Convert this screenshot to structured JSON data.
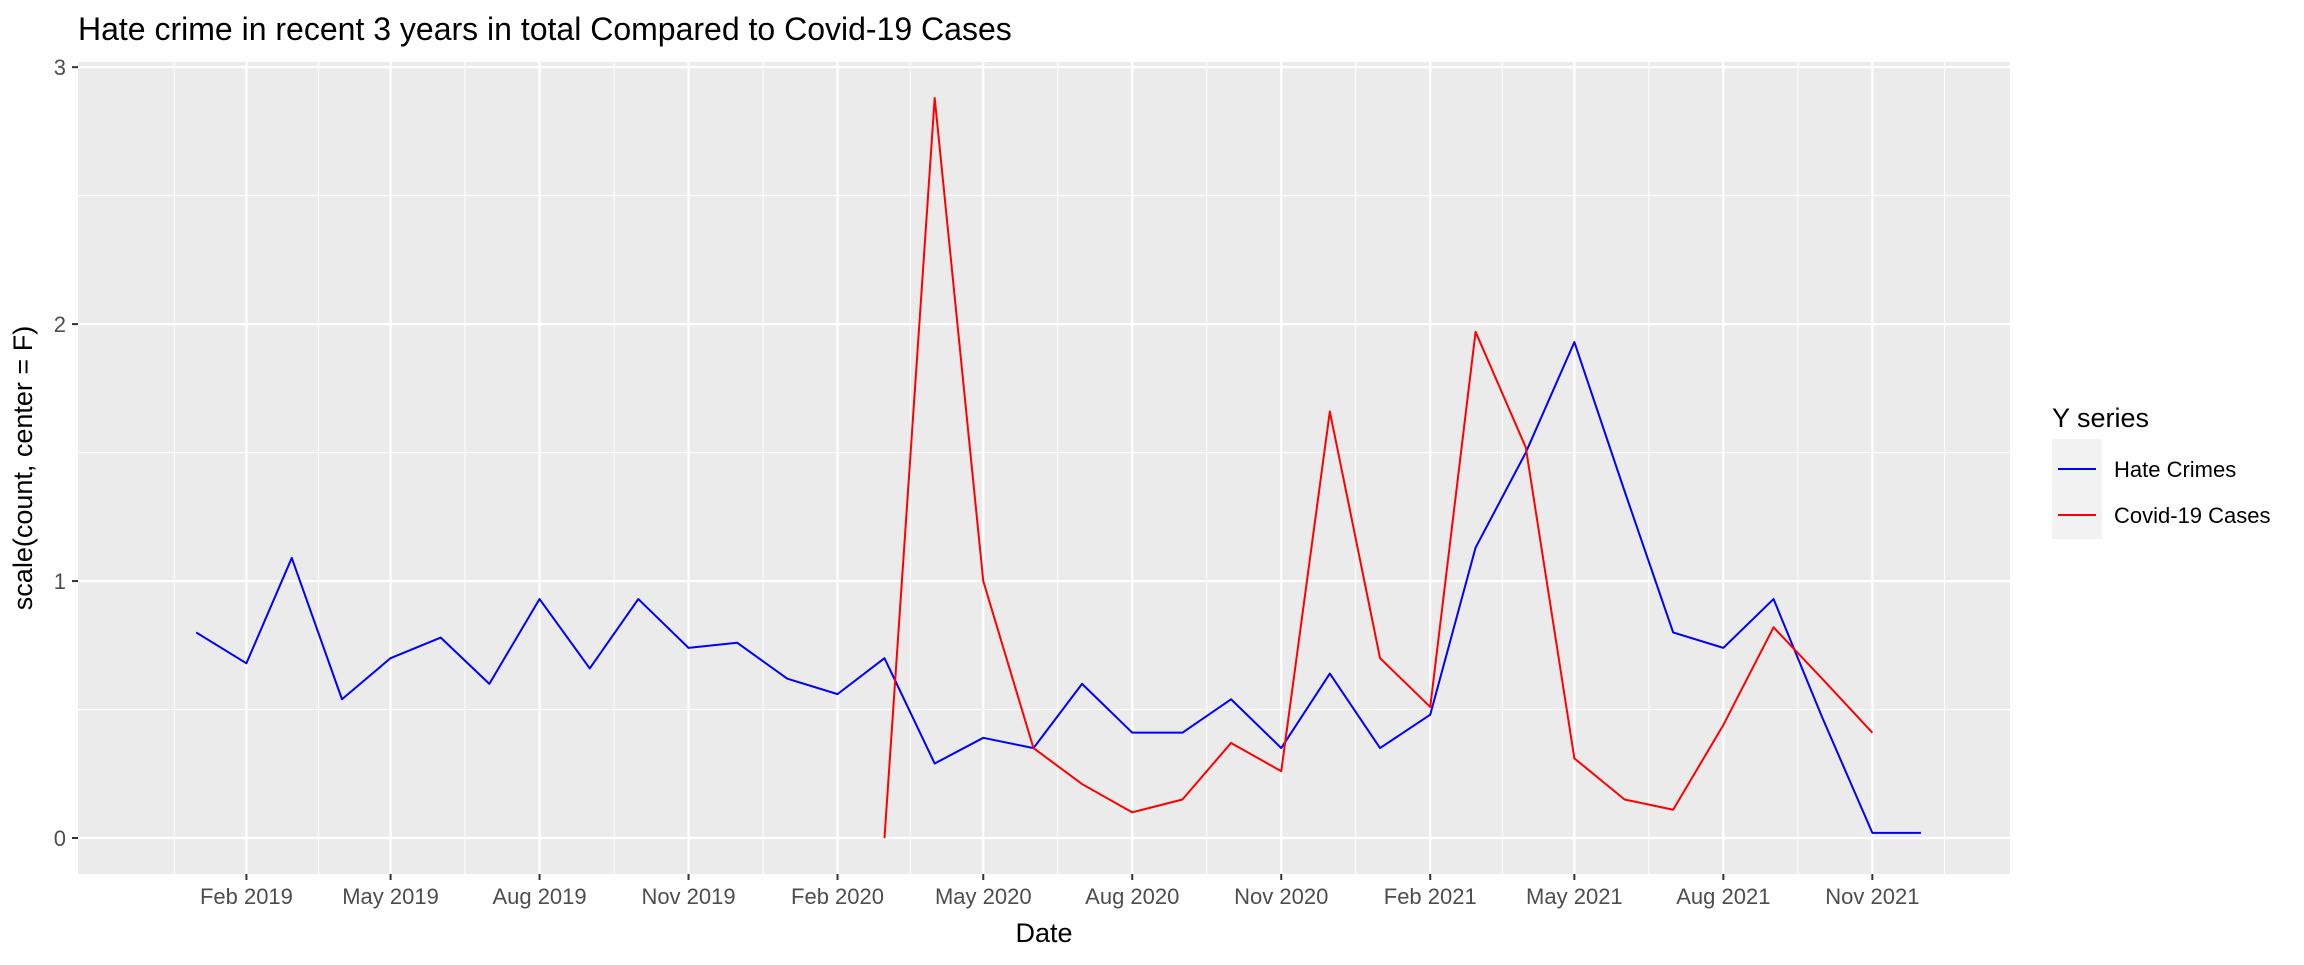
{
  "chart_data": {
    "type": "line",
    "title": "Hate crime in recent 3 years in total Compared to Covid-19 Cases",
    "xlabel": "Date",
    "ylabel": "scale(count, center = F)",
    "xlim": [
      "2018-10-20",
      "2022-01-25"
    ],
    "ylim": [
      -0.14,
      3.02
    ],
    "x_ticks": [
      {
        "date": "2019-02-01",
        "label": "Feb 2019"
      },
      {
        "date": "2019-05-01",
        "label": "May 2019"
      },
      {
        "date": "2019-08-01",
        "label": "Aug 2019"
      },
      {
        "date": "2019-11-01",
        "label": "Nov 2019"
      },
      {
        "date": "2020-02-01",
        "label": "Feb 2020"
      },
      {
        "date": "2020-05-01",
        "label": "May 2020"
      },
      {
        "date": "2020-08-01",
        "label": "Aug 2020"
      },
      {
        "date": "2020-11-01",
        "label": "Nov 2020"
      },
      {
        "date": "2021-02-01",
        "label": "Feb 2021"
      },
      {
        "date": "2021-05-01",
        "label": "May 2021"
      },
      {
        "date": "2021-08-01",
        "label": "Aug 2021"
      },
      {
        "date": "2021-11-01",
        "label": "Nov 2021"
      }
    ],
    "y_ticks": [
      0,
      1,
      2,
      3
    ],
    "grid": true,
    "legend": {
      "title": "Y series",
      "position": "right"
    },
    "series": [
      {
        "name": "Hate Crimes",
        "color": "#0000ff",
        "points": [
          {
            "x": "2019-01-01",
            "y": 0.8
          },
          {
            "x": "2019-02-01",
            "y": 0.68
          },
          {
            "x": "2019-03-01",
            "y": 1.09
          },
          {
            "x": "2019-04-01",
            "y": 0.54
          },
          {
            "x": "2019-05-01",
            "y": 0.7
          },
          {
            "x": "2019-06-01",
            "y": 0.78
          },
          {
            "x": "2019-07-01",
            "y": 0.6
          },
          {
            "x": "2019-08-01",
            "y": 0.93
          },
          {
            "x": "2019-09-01",
            "y": 0.66
          },
          {
            "x": "2019-10-01",
            "y": 0.93
          },
          {
            "x": "2019-11-01",
            "y": 0.74
          },
          {
            "x": "2019-12-01",
            "y": 0.76
          },
          {
            "x": "2020-01-01",
            "y": 0.62
          },
          {
            "x": "2020-02-01",
            "y": 0.56
          },
          {
            "x": "2020-03-01",
            "y": 0.7
          },
          {
            "x": "2020-04-01",
            "y": 0.29
          },
          {
            "x": "2020-05-01",
            "y": 0.39
          },
          {
            "x": "2020-06-01",
            "y": 0.35
          },
          {
            "x": "2020-07-01",
            "y": 0.6
          },
          {
            "x": "2020-08-01",
            "y": 0.41
          },
          {
            "x": "2020-09-01",
            "y": 0.41
          },
          {
            "x": "2020-10-01",
            "y": 0.54
          },
          {
            "x": "2020-11-01",
            "y": 0.35
          },
          {
            "x": "2020-12-01",
            "y": 0.64
          },
          {
            "x": "2021-01-01",
            "y": 0.35
          },
          {
            "x": "2021-02-01",
            "y": 0.48
          },
          {
            "x": "2021-03-01",
            "y": 1.13
          },
          {
            "x": "2021-04-01",
            "y": 1.5
          },
          {
            "x": "2021-05-01",
            "y": 1.93
          },
          {
            "x": "2021-06-01",
            "y": 1.35
          },
          {
            "x": "2021-07-01",
            "y": 0.8
          },
          {
            "x": "2021-08-01",
            "y": 0.74
          },
          {
            "x": "2021-09-01",
            "y": 0.93
          },
          {
            "x": "2021-10-01",
            "y": 0.47
          },
          {
            "x": "2021-11-01",
            "y": 0.02
          },
          {
            "x": "2021-12-01",
            "y": 0.02
          }
        ]
      },
      {
        "name": "Covid-19 Cases",
        "color": "#ff0000",
        "points": [
          {
            "x": "2020-03-01",
            "y": 0.0
          },
          {
            "x": "2020-04-01",
            "y": 2.88
          },
          {
            "x": "2020-05-01",
            "y": 1.0
          },
          {
            "x": "2020-06-01",
            "y": 0.35
          },
          {
            "x": "2020-07-01",
            "y": 0.21
          },
          {
            "x": "2020-08-01",
            "y": 0.1
          },
          {
            "x": "2020-09-01",
            "y": 0.15
          },
          {
            "x": "2020-10-01",
            "y": 0.37
          },
          {
            "x": "2020-11-01",
            "y": 0.26
          },
          {
            "x": "2020-12-01",
            "y": 1.66
          },
          {
            "x": "2021-01-01",
            "y": 0.7
          },
          {
            "x": "2021-02-01",
            "y": 0.51
          },
          {
            "x": "2021-03-01",
            "y": 1.97
          },
          {
            "x": "2021-04-01",
            "y": 1.52
          },
          {
            "x": "2021-05-01",
            "y": 0.31
          },
          {
            "x": "2021-06-01",
            "y": 0.15
          },
          {
            "x": "2021-07-01",
            "y": 0.11
          },
          {
            "x": "2021-08-01",
            "y": 0.44
          },
          {
            "x": "2021-09-01",
            "y": 0.82
          },
          {
            "x": "2021-10-01",
            "y": 0.62
          },
          {
            "x": "2021-11-01",
            "y": 0.41
          }
        ]
      }
    ]
  }
}
